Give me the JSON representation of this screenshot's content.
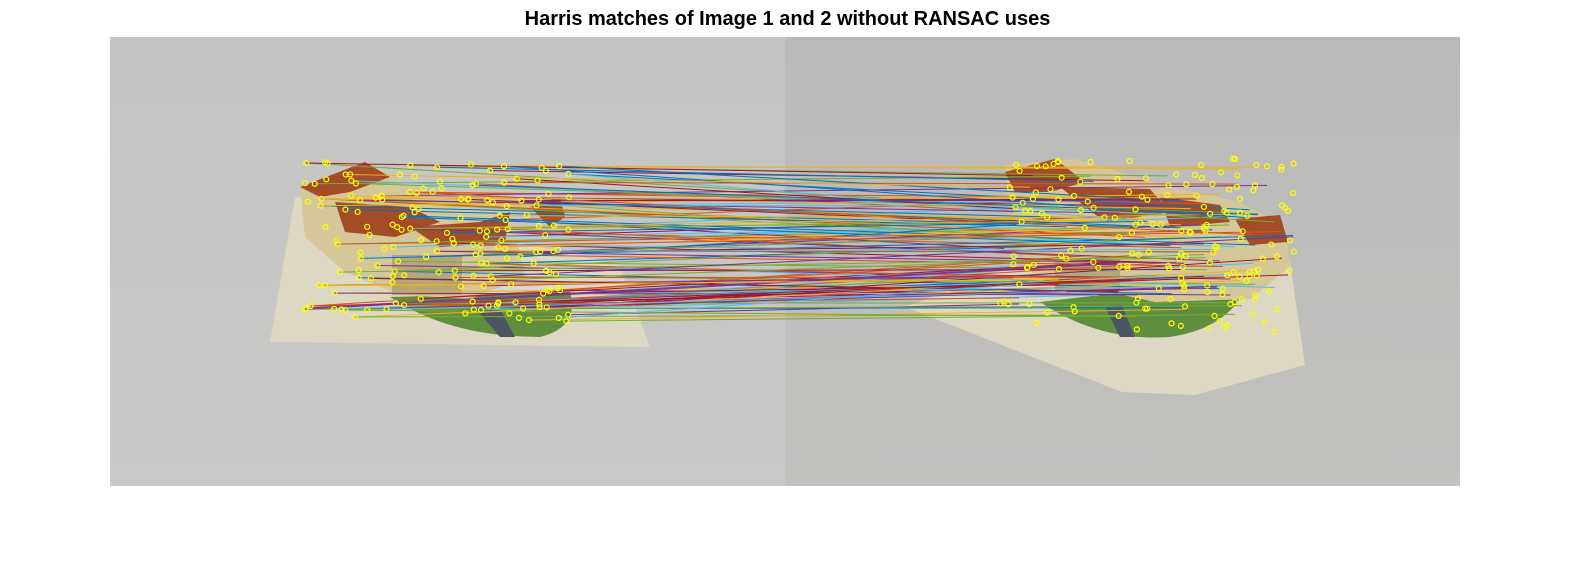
{
  "figure": {
    "title": "Harris matches of Image 1 and 2 without RANSAC uses"
  },
  "colors": {
    "background": "#ffffff",
    "backdrop_left": "#c6c5c4",
    "backdrop_right": "#bbbab8",
    "keypoint": "#ffff00",
    "roof": "#a44b28",
    "wall": "#d4c89a",
    "grass": "#5f8f3e",
    "paper": "#ddd8c4",
    "match_line_palette": [
      "#0072bd",
      "#d95319",
      "#edb120",
      "#7e2f8e",
      "#77ac30",
      "#4dbeee",
      "#a2142f"
    ]
  },
  "panels": [
    {
      "id": "image-1",
      "subject": "paper model castle on a sheet of paper"
    },
    {
      "id": "image-2",
      "subject": "paper model castle on a sheet of paper, rotated view"
    }
  ]
}
